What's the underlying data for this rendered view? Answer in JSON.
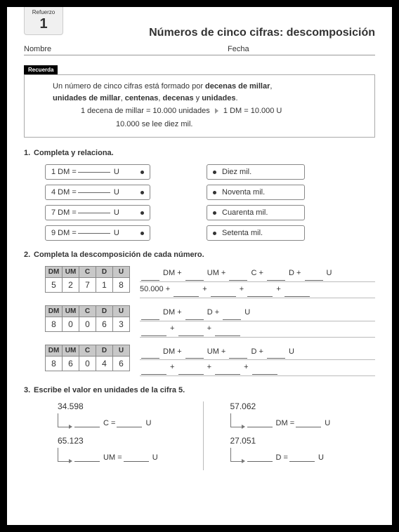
{
  "tab": {
    "label": "Refuerzo",
    "number": "1"
  },
  "title": "Números de cinco cifras: descomposición",
  "fields": {
    "name": "Nombre",
    "date": "Fecha"
  },
  "recuerda": {
    "tag": "Recuerda",
    "line1a": "Un número de cinco cifras está formado por ",
    "bold1": "decenas de millar",
    "line1b": ",",
    "bold2": "unidades de millar",
    "line1c": ", ",
    "bold3": "centenas",
    "line1d": ", ",
    "bold4": "decenas",
    "line1e": " y ",
    "bold5": "unidades",
    "line1f": ".",
    "line2a": "1 decena de millar = 10.000 unidades",
    "line2b": "1 DM = 10.000 U",
    "line3": "10.000 se lee diez mil."
  },
  "ex1": {
    "num": "1.",
    "title": "Completa y relaciona.",
    "left": [
      "1 DM =",
      "4 DM =",
      "7 DM =",
      "9 DM ="
    ],
    "unit": "U",
    "right": [
      "Diez mil.",
      "Noventa mil.",
      "Cuarenta mil.",
      "Setenta mil."
    ]
  },
  "ex2": {
    "num": "2.",
    "title": "Completa la descomposición de cada número.",
    "headers": [
      "DM",
      "UM",
      "C",
      "D",
      "U"
    ],
    "rows": [
      {
        "digits": [
          "5",
          "2",
          "7",
          "1",
          "8"
        ],
        "lines": [
          {
            "type": "full",
            "prefix": ""
          },
          {
            "type": "sum",
            "prefix": "50.000 +",
            "count": 4
          }
        ]
      },
      {
        "digits": [
          "8",
          "0",
          "0",
          "6",
          "3"
        ],
        "lines": [
          {
            "type": "dmdu"
          },
          {
            "type": "sum",
            "prefix": "",
            "count": 3
          }
        ]
      },
      {
        "digits": [
          "8",
          "6",
          "0",
          "4",
          "6"
        ],
        "lines": [
          {
            "type": "dmumdu"
          },
          {
            "type": "sum",
            "prefix": "",
            "count": 4
          }
        ]
      }
    ]
  },
  "ex3": {
    "num": "3.",
    "title": "Escribe el valor en unidades de la cifra 5.",
    "items": [
      {
        "n": "34.598",
        "u1": "C",
        "u2": "U"
      },
      {
        "n": "57.062",
        "u1": "DM",
        "u2": "U"
      },
      {
        "n": "65.123",
        "u1": "UM",
        "u2": "U"
      },
      {
        "n": "27.051",
        "u1": "D",
        "u2": "U"
      }
    ]
  }
}
